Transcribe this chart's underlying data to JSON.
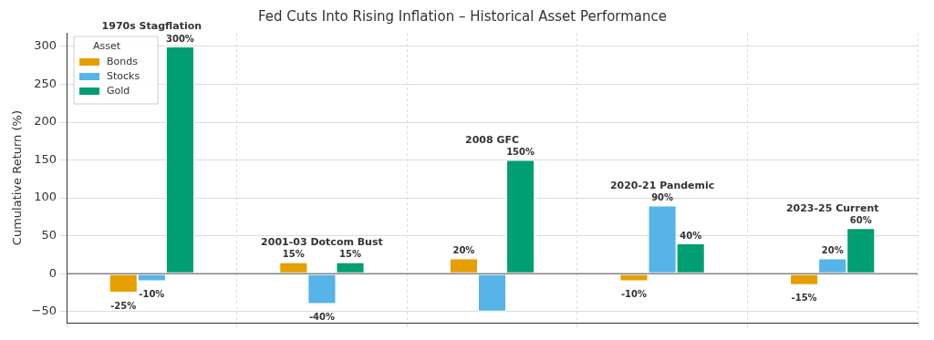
{
  "chart_data": {
    "type": "bar",
    "title": "Fed Cuts Into Rising Inflation – Historical Asset Performance",
    "ylabel": "Cumulative Return (%)",
    "legend_title": "Asset",
    "legend": "top left",
    "grid": true,
    "categories": [
      "1970s Stagflation",
      "2001-03 Dotcom Bust",
      "2008 GFC",
      "2020-21 Pandemic",
      "2023-25 Current"
    ],
    "series": [
      {
        "name": "Bonds",
        "color": "#e69f00",
        "values": [
          -25,
          15,
          20,
          -10,
          -15
        ],
        "value_labels": [
          "-25%",
          "15%",
          "20%",
          "-10%",
          "-15%"
        ]
      },
      {
        "name": "Stocks",
        "color": "#56b4e9",
        "values": [
          -10,
          -40,
          -50,
          90,
          20
        ],
        "value_labels": [
          "-10%",
          "-40%",
          null,
          "90%",
          "20%"
        ]
      },
      {
        "name": "Gold",
        "color": "#009e73",
        "values": [
          300,
          15,
          150,
          40,
          60
        ],
        "value_labels": [
          "300%",
          "15%",
          "150%",
          "40%",
          "60%"
        ]
      }
    ],
    "ylim": [
      -65,
      318
    ],
    "yticks": [
      -50,
      0,
      50,
      100,
      150,
      200,
      250,
      300
    ]
  }
}
